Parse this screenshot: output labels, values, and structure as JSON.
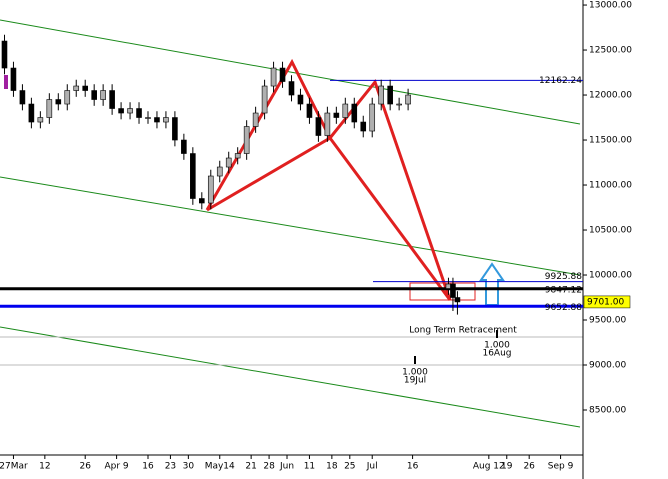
{
  "chart_data": {
    "type": "candlestick",
    "x": [
      1,
      3,
      5,
      7,
      9,
      11,
      13,
      15,
      17,
      19,
      21,
      23,
      25,
      27,
      29,
      31,
      33,
      35,
      37,
      39,
      41,
      43,
      45,
      47,
      49,
      51,
      53,
      55,
      57,
      59,
      61,
      63,
      65,
      67,
      69,
      71,
      73,
      75,
      77,
      79,
      81,
      83,
      85,
      87,
      89,
      91,
      100,
      101,
      102
    ],
    "open": [
      12600,
      12300,
      12050,
      11900,
      11700,
      11750,
      11950,
      11900,
      12050,
      12100,
      12050,
      11950,
      12050,
      11850,
      11800,
      11850,
      11750,
      11750,
      11700,
      11750,
      11500,
      11350,
      10850,
      10800,
      11100,
      11200,
      11300,
      11350,
      11650,
      11800,
      12100,
      12300,
      12150,
      12000,
      11900,
      11750,
      11550,
      11800,
      11750,
      11900,
      11700,
      11600,
      11900,
      12100,
      11900,
      11900,
      9850,
      9900,
      9750
    ],
    "high": [
      12670,
      12370,
      12120,
      11970,
      11820,
      12020,
      12020,
      12120,
      12170,
      12170,
      12120,
      12120,
      12120,
      11920,
      11920,
      11920,
      11820,
      11820,
      11820,
      11820,
      11570,
      11420,
      10920,
      11170,
      11270,
      11370,
      11420,
      11720,
      11870,
      12170,
      12370,
      12370,
      12220,
      12070,
      11970,
      11820,
      11870,
      11870,
      11970,
      11970,
      11770,
      11970,
      12170,
      12170,
      11970,
      12070,
      9970,
      9970,
      9820
    ],
    "low": [
      12230,
      11980,
      11830,
      11630,
      11630,
      11680,
      11830,
      11830,
      11980,
      11980,
      11880,
      11880,
      11780,
      11730,
      11730,
      11680,
      11680,
      11630,
      11630,
      11430,
      11280,
      10780,
      10730,
      10730,
      11030,
      11130,
      11230,
      11280,
      11580,
      11730,
      12030,
      12080,
      11930,
      11830,
      11680,
      11480,
      11480,
      11680,
      11680,
      11630,
      11530,
      11530,
      11830,
      11830,
      11830,
      11830,
      9780,
      9600,
      9560
    ],
    "close": [
      12300,
      12050,
      11900,
      11700,
      11750,
      11950,
      11900,
      12050,
      12100,
      12050,
      11950,
      12050,
      11850,
      11800,
      11850,
      11750,
      11750,
      11700,
      11750,
      11500,
      11350,
      10850,
      10800,
      11100,
      11200,
      11300,
      11350,
      11650,
      11800,
      12100,
      12300,
      12150,
      12000,
      11900,
      11750,
      11550,
      11800,
      11750,
      11900,
      11700,
      11600,
      11900,
      12100,
      11900,
      11900,
      12000,
      9900,
      9750,
      9701
    ],
    "up_color": "#b0b0b0",
    "down_color": "#000000",
    "xlim": [
      0,
      130
    ],
    "xticks": [
      {
        "value": 3,
        "label": "27Mar"
      },
      {
        "value": 10,
        "label": "12"
      },
      {
        "value": 19,
        "label": "26"
      },
      {
        "value": 26,
        "label": "Apr 9"
      },
      {
        "value": 33,
        "label": "16"
      },
      {
        "value": 38,
        "label": "23"
      },
      {
        "value": 42,
        "label": "30"
      },
      {
        "value": 49,
        "label": "May14"
      },
      {
        "value": 56,
        "label": "21"
      },
      {
        "value": 60,
        "label": "28"
      },
      {
        "value": 64,
        "label": "Jun"
      },
      {
        "value": 69,
        "label": "11"
      },
      {
        "value": 74,
        "label": "18"
      },
      {
        "value": 78,
        "label": "25"
      },
      {
        "value": 83,
        "label": "Jul"
      },
      {
        "value": 92,
        "label": "16"
      },
      {
        "value": 109,
        "label": "Aug 12"
      },
      {
        "value": 113,
        "label": "19"
      },
      {
        "value": 118,
        "label": "26"
      },
      {
        "value": 125,
        "label": "Sep 9"
      }
    ],
    "ylim": [
      8000,
      13056
    ],
    "yticks": [
      {
        "value": 8500,
        "label": "8500.00"
      },
      {
        "value": 9000,
        "label": "9000.00"
      },
      {
        "value": 9500,
        "label": "9500.00"
      },
      {
        "value": 10000,
        "label": "10000.00"
      },
      {
        "value": 10500,
        "label": "10500.00"
      },
      {
        "value": 11000,
        "label": "11000.00"
      },
      {
        "value": 11500,
        "label": "11500.00"
      },
      {
        "value": 12000,
        "label": "12000.00"
      },
      {
        "value": 12500,
        "label": "12500.00"
      },
      {
        "value": 13000,
        "label": "13000.00"
      }
    ],
    "levels": [
      {
        "value": 12162.24,
        "label": "12162.24",
        "color": "#0000cc"
      },
      {
        "value": 9925.88,
        "label": "9925.88",
        "color": "#0000cc"
      },
      {
        "value": 9847.12,
        "label": "9847.12",
        "color": "#000000"
      },
      {
        "value": 9652.88,
        "label": "9652.88",
        "color": "#0000ee"
      },
      {
        "value": 9701,
        "label": "9701.00",
        "color": "#ffff00"
      }
    ],
    "annotations": [
      "Long Term Retracement",
      "1.000",
      "16Aug",
      "1.000",
      "19Jul"
    ]
  }
}
